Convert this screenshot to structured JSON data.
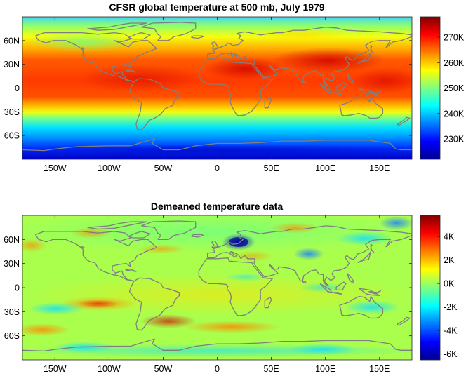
{
  "chart_data": [
    {
      "type": "heatmap",
      "title": "CFSR global temperature at 500 mb, July 1979",
      "xlabel": "",
      "ylabel": "",
      "x_ticks": [
        -150,
        -100,
        -50,
        0,
        50,
        100,
        150
      ],
      "x_tick_labels": [
        "150W",
        "100W",
        "50W",
        "0",
        "50E",
        "100E",
        "150E"
      ],
      "y_ticks": [
        60,
        30,
        0,
        -30,
        -60
      ],
      "y_tick_labels": [
        "60N",
        "30N",
        "0",
        "30S",
        "60S"
      ],
      "xlim": [
        -180,
        180
      ],
      "ylim": [
        -90,
        90
      ],
      "colorbar": {
        "range": [
          222,
          278
        ],
        "ticks": [
          270,
          260,
          250,
          240,
          230
        ],
        "tick_labels": [
          "270K",
          "260K",
          "250K",
          "240K",
          "230K"
        ]
      },
      "colormap": "jet",
      "overlay": "coastlines"
    },
    {
      "type": "heatmap",
      "title": "Demeaned temperature data",
      "xlabel": "",
      "ylabel": "",
      "x_ticks": [
        -150,
        -100,
        -50,
        0,
        50,
        100,
        150
      ],
      "x_tick_labels": [
        "150W",
        "100W",
        "50W",
        "0",
        "50E",
        "100E",
        "150E"
      ],
      "y_ticks": [
        60,
        30,
        0,
        -30,
        -60
      ],
      "y_tick_labels": [
        "60N",
        "30N",
        "0",
        "30S",
        "60S"
      ],
      "xlim": [
        -180,
        180
      ],
      "ylim": [
        -90,
        90
      ],
      "colorbar": {
        "range": [
          -6.5,
          5.8
        ],
        "ticks": [
          4,
          2,
          0,
          -2,
          -4,
          -6
        ],
        "tick_labels": [
          "4K",
          "2K",
          "0K",
          "-2K",
          "-4K",
          "-6K"
        ]
      },
      "colormap": "jet",
      "overlay": "coastlines"
    }
  ],
  "colors": {
    "coastline": "#7f7f7f",
    "frame": "#262626"
  }
}
